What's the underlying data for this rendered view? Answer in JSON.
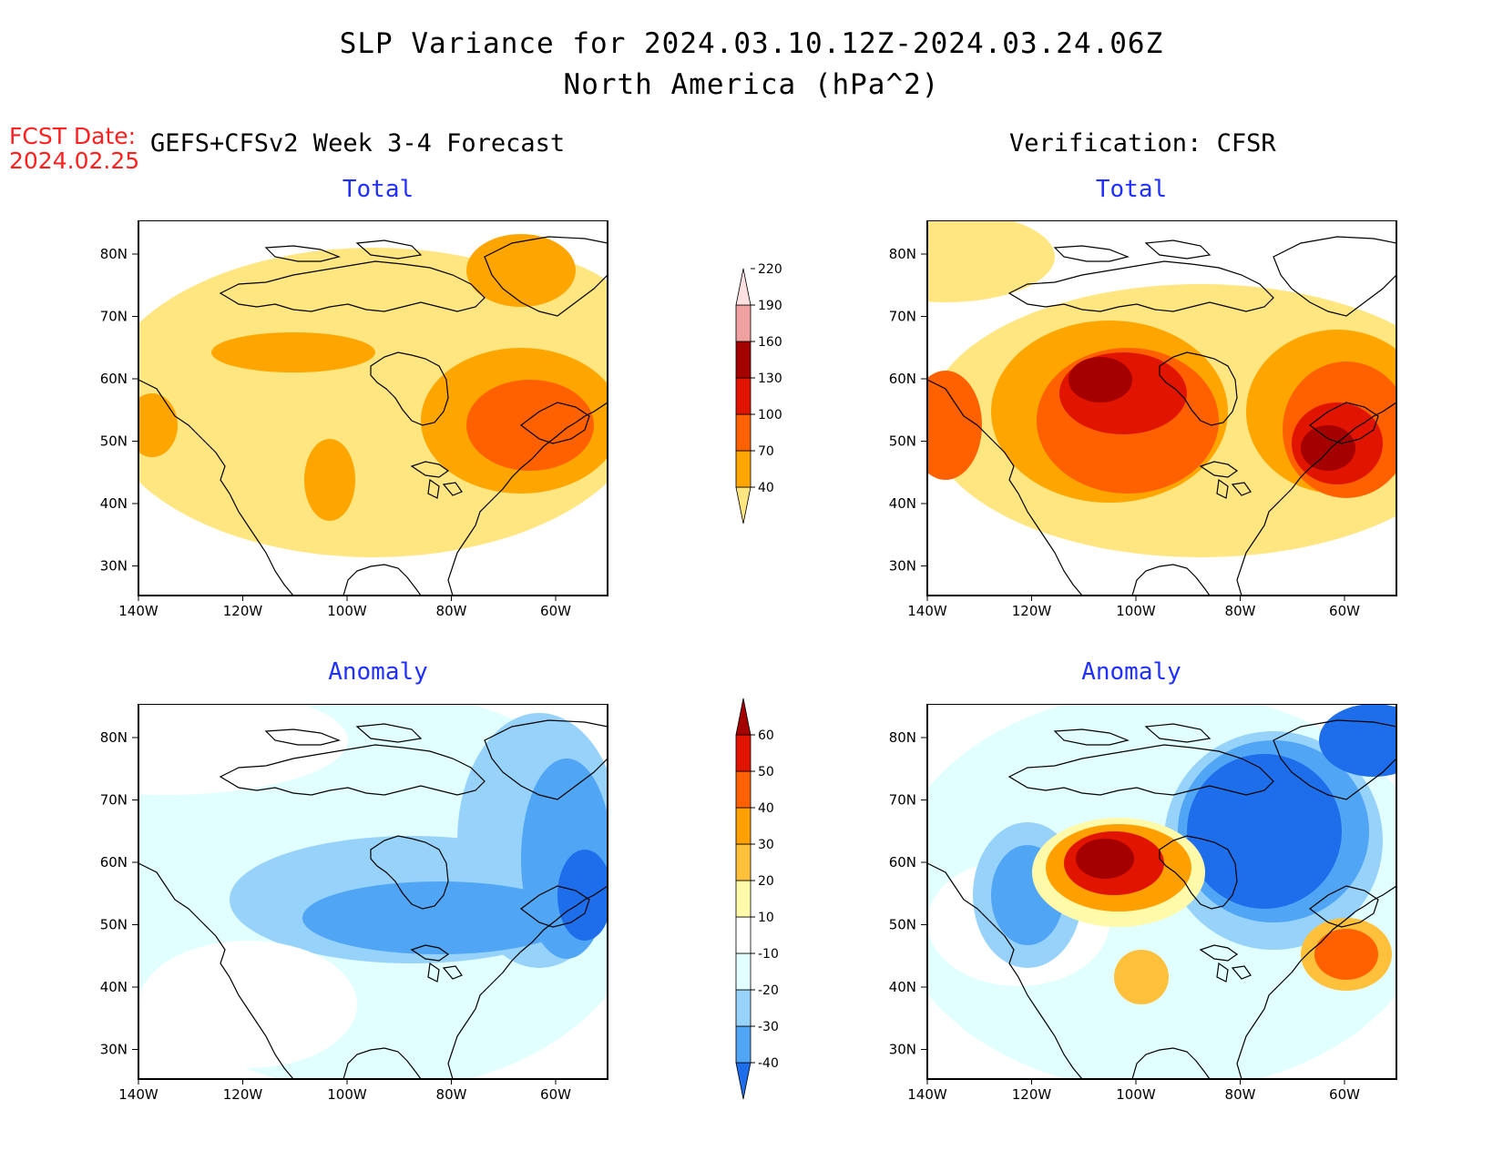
{
  "header": {
    "title_line1": "SLP Variance for 2024.03.10.12Z-2024.03.24.06Z",
    "title_line2": "North America (hPa^2)",
    "fcst_label": "FCST Date:",
    "fcst_date": "2024.02.25",
    "left_column": "GEFS+CFSv2 Week 3-4 Forecast",
    "right_column": "Verification: CFSR"
  },
  "panels": {
    "top_left_title": "Total",
    "top_right_title": "Total",
    "bottom_left_title": "Anomaly",
    "bottom_right_title": "Anomaly"
  },
  "axes": {
    "lat_labels": [
      "80N",
      "70N",
      "60N",
      "50N",
      "40N",
      "30N"
    ],
    "lon_labels": [
      "140W",
      "120W",
      "100W",
      "80W",
      "60W"
    ]
  },
  "colorbar_total": {
    "levels": [
      "40",
      "70",
      "100",
      "130",
      "160",
      "190",
      "220"
    ],
    "colors": [
      "#ffe680",
      "#ffa500",
      "#ff6000",
      "#e11400",
      "#a50000",
      "#f0a0a0",
      "#ffe0e0"
    ]
  },
  "colorbar_anomaly": {
    "levels": [
      "-40",
      "-30",
      "-20",
      "-10",
      "10",
      "20",
      "30",
      "40",
      "50",
      "60"
    ],
    "colors": [
      "#1e6eeb",
      "#50a5f5",
      "#96d2fa",
      "#e1ffff",
      "#ffffff",
      "#fffaaa",
      "#ffc03c",
      "#ffa000",
      "#ff6000",
      "#e11400",
      "#a50000"
    ]
  }
}
